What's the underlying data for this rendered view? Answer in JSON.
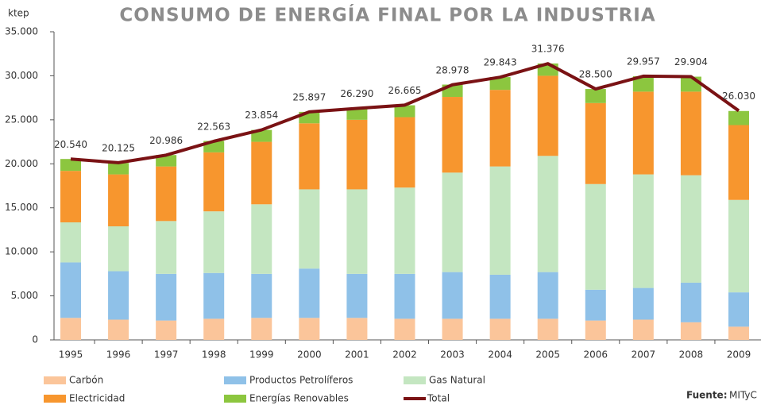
{
  "chart_data": {
    "type": "stacked_bar_line",
    "title": "CONSUMO DE ENERGÍA FINAL POR LA INDUSTRIA",
    "y_label": "ktep",
    "source_label": "Fuente:",
    "source": "MITyC",
    "categories": [
      "1995",
      "1996",
      "1997",
      "1998",
      "1999",
      "2000",
      "2001",
      "2002",
      "2003",
      "2004",
      "2005",
      "2006",
      "2007",
      "2008",
      "2009"
    ],
    "ylim": [
      0,
      35000
    ],
    "yticks": [
      0,
      {
        "value": 5000,
        "label": "5.000"
      },
      {
        "value": 10000,
        "label": "10.000"
      },
      {
        "value": 15000,
        "label": "15.000"
      },
      {
        "value": 20000,
        "label": "20.000"
      },
      {
        "value": 25000,
        "label": "25.000"
      },
      {
        "value": 30000,
        "label": "30.000"
      },
      {
        "value": 35000,
        "label": "35.000"
      }
    ],
    "series": [
      {
        "name": "Carbón",
        "color": "#fbc59a",
        "values": [
          2500,
          2300,
          2200,
          2400,
          2500,
          2500,
          2500,
          2400,
          2400,
          2400,
          2400,
          2200,
          2300,
          2000,
          1500
        ]
      },
      {
        "name": "Productos Petrolíferos",
        "color": "#8fc1e8",
        "values": [
          6300,
          5500,
          5300,
          5200,
          5000,
          5600,
          5000,
          5100,
          5300,
          5000,
          5300,
          3500,
          3600,
          4500,
          3900
        ]
      },
      {
        "name": "Gas Natural",
        "color": "#c4e6c1",
        "values": [
          4550,
          5100,
          6000,
          7000,
          7900,
          9000,
          9600,
          9800,
          11300,
          12300,
          13200,
          12000,
          12900,
          12200,
          10500
        ]
      },
      {
        "name": "Electricidad",
        "color": "#f7962e",
        "values": [
          5850,
          5900,
          6200,
          6700,
          7100,
          7500,
          7900,
          8000,
          8600,
          8700,
          9100,
          9200,
          9400,
          9500,
          8500
        ]
      },
      {
        "name": "Energías Renovables",
        "color": "#8cc63f",
        "values": [
          1350,
          1300,
          1300,
          1300,
          1350,
          1300,
          1300,
          1350,
          1400,
          1450,
          1400,
          1600,
          1750,
          1700,
          1600
        ]
      },
      {
        "name": "Total",
        "color": "#7a1214",
        "type": "line",
        "values": [
          20540,
          20125,
          20986,
          22563,
          23854,
          25897,
          26290,
          26665,
          28978,
          29843,
          31376,
          28500,
          29957,
          29904,
          26030
        ],
        "value_labels": [
          "20.540",
          "20.125",
          "20.986",
          "22.563",
          "23.854",
          "25.897",
          "26.290",
          "26.665",
          "28.978",
          "29.843",
          "31.376",
          "28.500",
          "29.957",
          "29.904",
          "26.030"
        ]
      }
    ]
  }
}
